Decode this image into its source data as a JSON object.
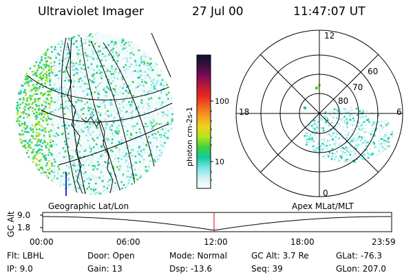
{
  "header": {
    "instrument": "Ultraviolet Imager",
    "date": "27 Jul 00",
    "time": "11:47:07 UT"
  },
  "left_panel": {
    "label": "Geographic Lat/Lon"
  },
  "colorbar": {
    "unit_label": "photon cm-2s-1",
    "ticks": [
      "100",
      "10"
    ],
    "colors": [
      "#101030",
      "#3a1040",
      "#7a0a5a",
      "#b81a3a",
      "#e8281e",
      "#f0641e",
      "#f5a01e",
      "#f0d21e",
      "#b4e61e",
      "#3cd23c",
      "#14c8a0",
      "#78e6e6",
      "#d2f0f5",
      "#ffffff"
    ]
  },
  "right_panel": {
    "label": "Apex MLat/MLT",
    "mlt_labels": {
      "top": "12",
      "left": "18",
      "right": "6",
      "bottom": "0"
    },
    "mlat_labels": [
      "60",
      "70",
      "80"
    ]
  },
  "timeline": {
    "y_axis_label": "GC Alt",
    "y_ticks": [
      "9.0",
      "1.8"
    ],
    "x_ticks": [
      "00:00",
      "06:00",
      "12:00",
      "18:00",
      "23:59"
    ],
    "current_time_hours": 11.785,
    "marker_color": "#e00000"
  },
  "footer": {
    "rows": [
      [
        "Flt: LBHL",
        "Door: Open",
        "Mode: Normal",
        "GC Alt: 3.7 Re",
        "GLat: -76.3"
      ],
      [
        "IP: 9.0",
        "Gain: 13",
        "Dsp: -13.6",
        "Seq: 39",
        "GLon: 207.0"
      ]
    ]
  }
}
